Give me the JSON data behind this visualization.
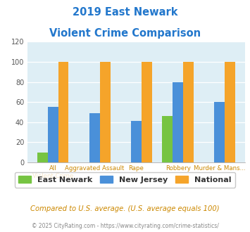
{
  "title_line1": "2019 East Newark",
  "title_line2": "Violent Crime Comparison",
  "categories": [
    "All Violent Crime",
    "Aggravated Assault",
    "Rape",
    "Robbery",
    "Murder & Mans..."
  ],
  "cat_labels": [
    "All\nViolent Crime",
    "Aggravated Assault",
    "Rape",
    "Robbery",
    "Murder & Mans..."
  ],
  "east_newark": [
    10,
    0,
    0,
    46,
    0
  ],
  "new_jersey": [
    55,
    49,
    41,
    80,
    60
  ],
  "national": [
    100,
    100,
    100,
    100,
    100
  ],
  "color_east_newark": "#76c442",
  "color_new_jersey": "#4a90d9",
  "color_national": "#f5a42a",
  "ylim": [
    0,
    120
  ],
  "yticks": [
    0,
    20,
    40,
    60,
    80,
    100,
    120
  ],
  "background_color": "#deeef5",
  "footer_text": "Compared to U.S. average. (U.S. average equals 100)",
  "copyright_text": "© 2025 CityRating.com - https://www.cityrating.com/crime-statistics/",
  "title_color": "#2277cc",
  "legend_text_color": "#333333",
  "xlabel_color": "#cc8800",
  "ytick_color": "#555555",
  "legend_labels": [
    "East Newark",
    "New Jersey",
    "National"
  ],
  "bar_width": 0.25
}
